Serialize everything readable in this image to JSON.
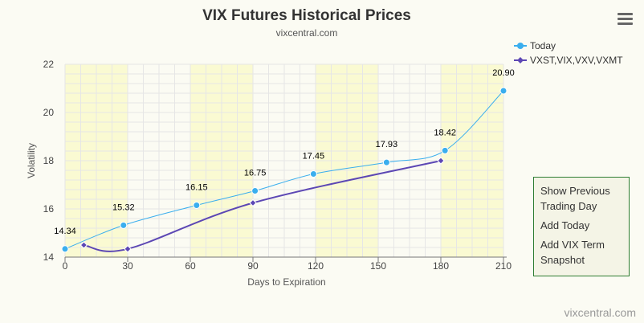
{
  "chart_data": {
    "type": "line",
    "title": "VIX Futures Historical Prices",
    "subtitle": "vixcentral.com",
    "xlabel": "Days to Expiration",
    "ylabel": "Volatility",
    "xlim": [
      0,
      210
    ],
    "ylim": [
      14,
      22
    ],
    "x_ticks": [
      0,
      30,
      60,
      90,
      120,
      150,
      180,
      210
    ],
    "y_ticks": [
      14,
      16,
      18,
      20,
      22
    ],
    "shaded_bands": [
      [
        0,
        30
      ],
      [
        60,
        90
      ],
      [
        120,
        150
      ],
      [
        180,
        210
      ]
    ],
    "legend_position": "top-right",
    "series": [
      {
        "name": "Today",
        "color": "#3aaeee",
        "marker": "circle",
        "x": [
          0,
          28,
          63,
          91,
          119,
          154,
          182,
          210
        ],
        "y": [
          14.34,
          15.32,
          16.15,
          16.75,
          17.45,
          17.93,
          18.42,
          20.9
        ],
        "labels": [
          "14.34",
          "15.32",
          "16.15",
          "16.75",
          "17.45",
          "17.93",
          "18.42",
          "20.90"
        ]
      },
      {
        "name": "VXST,VIX,VXV,VXMT",
        "color": "#5c47b4",
        "marker": "diamond",
        "x": [
          9,
          30,
          90,
          180
        ],
        "y": [
          14.5,
          14.34,
          16.25,
          18.0
        ]
      }
    ]
  },
  "menu": {
    "icon": "hamburger-menu-icon"
  },
  "side_panel": {
    "show_previous": "Show Previous Trading Day",
    "add_today": "Add Today",
    "add_vix_term": "Add VIX Term Snapshot"
  },
  "footer": {
    "credit": "vixcentral.com"
  }
}
